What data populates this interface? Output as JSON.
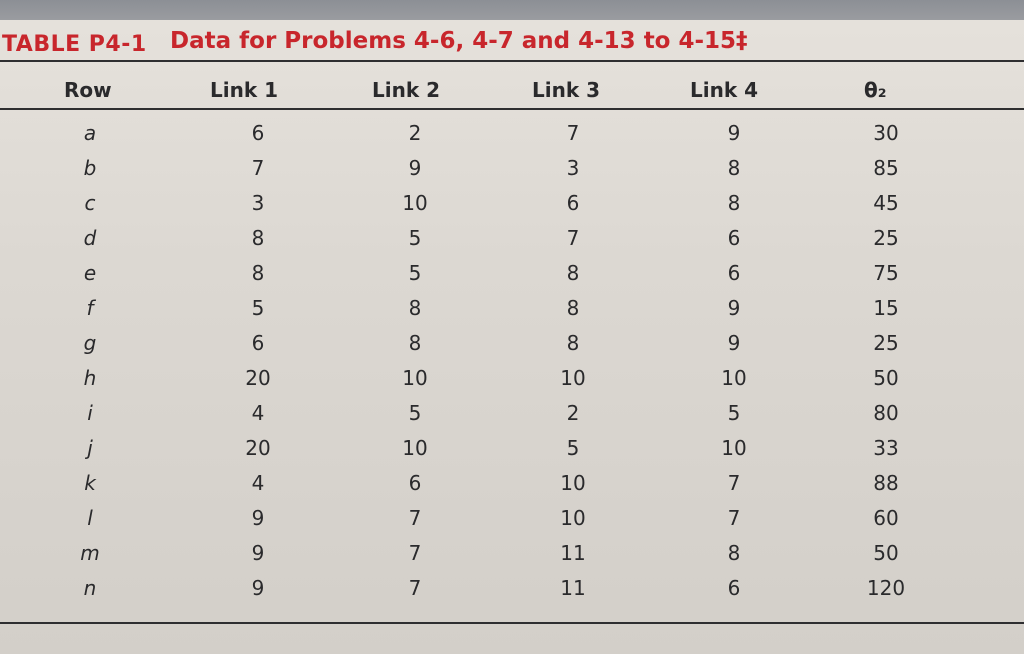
{
  "table": {
    "number": "TABLE P4-1",
    "title": "Data for Problems 4-6, 4-7 and 4-13 to 4-15‡",
    "headers": [
      "Row",
      "Link 1",
      "Link 2",
      "Link 3",
      "Link 4",
      "θ₂"
    ],
    "rows": [
      {
        "row": "a",
        "link1": "6",
        "link2": "2",
        "link3": "7",
        "link4": "9",
        "theta2": "30"
      },
      {
        "row": "b",
        "link1": "7",
        "link2": "9",
        "link3": "3",
        "link4": "8",
        "theta2": "85"
      },
      {
        "row": "c",
        "link1": "3",
        "link2": "10",
        "link3": "6",
        "link4": "8",
        "theta2": "45"
      },
      {
        "row": "d",
        "link1": "8",
        "link2": "5",
        "link3": "7",
        "link4": "6",
        "theta2": "25"
      },
      {
        "row": "e",
        "link1": "8",
        "link2": "5",
        "link3": "8",
        "link4": "6",
        "theta2": "75"
      },
      {
        "row": "f",
        "link1": "5",
        "link2": "8",
        "link3": "8",
        "link4": "9",
        "theta2": "15"
      },
      {
        "row": "g",
        "link1": "6",
        "link2": "8",
        "link3": "8",
        "link4": "9",
        "theta2": "25"
      },
      {
        "row": "h",
        "link1": "20",
        "link2": "10",
        "link3": "10",
        "link4": "10",
        "theta2": "50"
      },
      {
        "row": "i",
        "link1": "4",
        "link2": "5",
        "link3": "2",
        "link4": "5",
        "theta2": "80"
      },
      {
        "row": "j",
        "link1": "20",
        "link2": "10",
        "link3": "5",
        "link4": "10",
        "theta2": "33"
      },
      {
        "row": "k",
        "link1": "4",
        "link2": "6",
        "link3": "10",
        "link4": "7",
        "theta2": "88"
      },
      {
        "row": "l",
        "link1": "9",
        "link2": "7",
        "link3": "10",
        "link4": "7",
        "theta2": "60"
      },
      {
        "row": "m",
        "link1": "9",
        "link2": "7",
        "link3": "11",
        "link4": "8",
        "theta2": "50"
      },
      {
        "row": "n",
        "link1": "9",
        "link2": "7",
        "link3": "11",
        "link4": "6",
        "theta2": "120"
      }
    ]
  }
}
